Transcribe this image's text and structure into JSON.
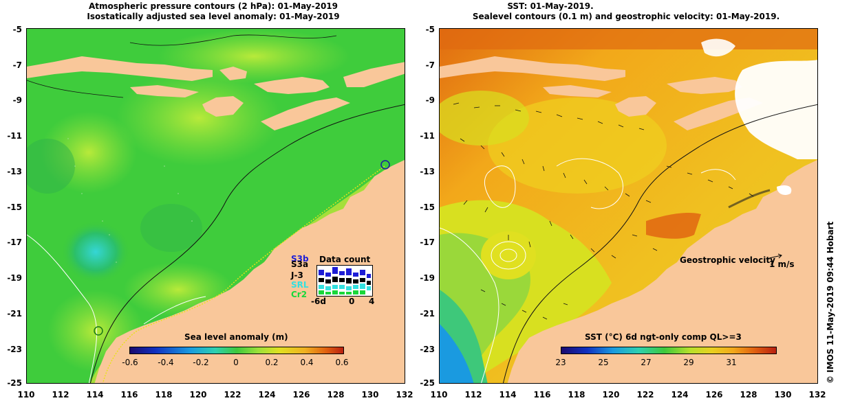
{
  "left_panel": {
    "title_line1": "Atmospheric pressure contours (2 hPa): 01-May-2019",
    "title_line2": "Isostatically adjusted sea level anomaly: 01-May-2019",
    "colorbar": {
      "label": "Sea level anomaly (m)",
      "ticks": [
        "-0.6",
        "-0.4",
        "-0.2",
        "0",
        "0.2",
        "0.4",
        "0.6"
      ],
      "range": [
        -0.6,
        0.6
      ]
    },
    "data_count": {
      "title": "Data count",
      "satellites": [
        "S3b",
        "S3a",
        "J-3",
        "SRL",
        "Cr2"
      ],
      "sat_colors": [
        "#1d1dd6",
        "#000000",
        "#000000",
        "#34e0e0",
        "#19d73a"
      ],
      "axis_ticks": [
        "-6d",
        "0",
        "4"
      ]
    }
  },
  "right_panel": {
    "title_line1": "SST: 01-May-2019.",
    "title_line2": "Sealevel contours (0.1 m) and geostrophic velocity: 01-May-2019.",
    "colorbar": {
      "label": "SST (°C) 6d ngt-only comp QL>=3",
      "ticks": [
        "23",
        "25",
        "27",
        "29",
        "31"
      ],
      "range": [
        22,
        32
      ]
    },
    "velocity_legend": {
      "label": "Geostrophic velocity",
      "scale": "1 m/s"
    },
    "credit": "© IMOS 11-May-2019 09:44 Hobart"
  },
  "axes": {
    "y_ticks": [
      "-5",
      "-7",
      "-9",
      "-11",
      "-13",
      "-15",
      "-17",
      "-19",
      "-21",
      "-23",
      "-25"
    ],
    "x_ticks": [
      "110",
      "112",
      "114",
      "116",
      "118",
      "120",
      "122",
      "124",
      "126",
      "128",
      "130",
      "132"
    ],
    "lat_range": [
      -25,
      -5
    ],
    "lon_range": [
      110,
      132
    ]
  },
  "colors": {
    "land": "#f9c79a",
    "sla_green": "#3ec83c",
    "sla_light": "#8fe03a",
    "sst_orange": "#f2a81a",
    "sst_yellow": "#e8e21a"
  }
}
